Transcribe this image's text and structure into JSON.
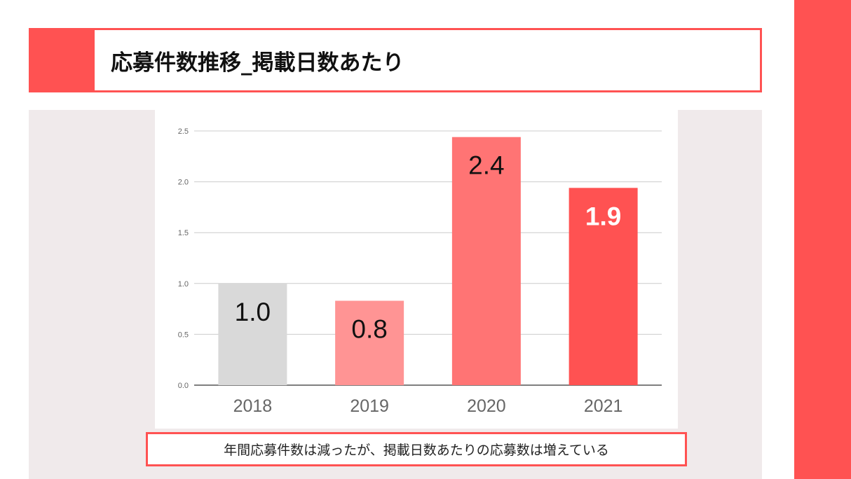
{
  "title": "応募件数推移_掲載日数あたり",
  "caption": "年間応募件数は減ったが、掲載日数あたりの応募数は増えている",
  "colors": {
    "accent": "#ff5252",
    "panel": "#f0eaeb"
  },
  "chart_data": {
    "type": "bar",
    "title": "",
    "xlabel": "",
    "ylabel": "",
    "categories": [
      "2018",
      "2019",
      "2020",
      "2021"
    ],
    "values": [
      1.0,
      0.83,
      2.44,
      1.94
    ],
    "data_labels": [
      "1.0",
      "0.8",
      "2.4",
      "1.9"
    ],
    "bar_colors": [
      "#d9d9d9",
      "#ff9494",
      "#ff7474",
      "#ff5252"
    ],
    "label_colors": [
      "#111111",
      "#111111",
      "#111111",
      "#ffffff"
    ],
    "label_bold": [
      false,
      false,
      false,
      true
    ],
    "y_ticks": [
      "0.0",
      "0.5",
      "1.0",
      "1.5",
      "2.0",
      "2.5"
    ],
    "ylim": [
      0,
      2.5
    ],
    "grid": true,
    "legend": "none"
  }
}
